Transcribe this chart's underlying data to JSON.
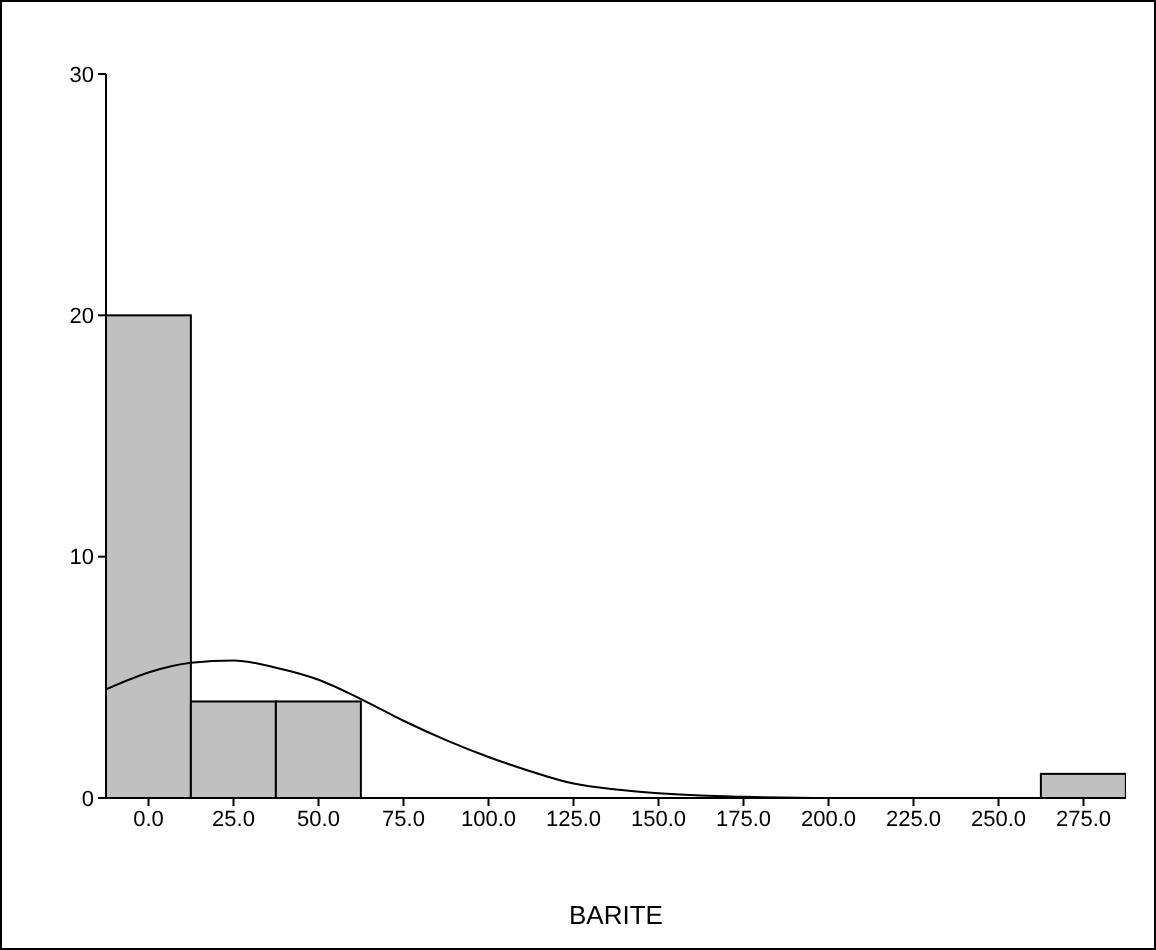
{
  "chart_data": {
    "type": "histogram",
    "xlabel": "BARITE",
    "bins": [
      -12.5,
      12.5,
      37.5,
      62.5,
      87.5,
      112.5,
      137.5,
      162.5,
      187.5,
      212.5,
      237.5,
      262.5,
      287.5
    ],
    "values": [
      20,
      4,
      4,
      0,
      0,
      0,
      0,
      0,
      0,
      0,
      0,
      1
    ],
    "color": "#c0c0c0",
    "series": [
      {
        "type": "line",
        "color": "#000000",
        "x": [
          -12.5,
          0,
          12.5,
          25,
          37.5,
          50,
          62.5,
          75,
          87.5,
          100,
          112.5,
          125,
          137.5,
          150,
          162.5,
          175,
          200,
          250,
          287.5
        ],
        "values": [
          4.5,
          5.2,
          5.6,
          5.7,
          5.4,
          4.9,
          4.1,
          3.2,
          2.4,
          1.7,
          1.1,
          0.6,
          0.35,
          0.2,
          0.1,
          0.05,
          0,
          0,
          0
        ]
      }
    ],
    "xlim": [
      -12.5,
      287.5
    ],
    "xticks": [
      {
        "value": 0,
        "label": "0.0"
      },
      {
        "value": 25,
        "label": "25.0"
      },
      {
        "value": 50,
        "label": "50.0"
      },
      {
        "value": 75,
        "label": "75.0"
      },
      {
        "value": 100,
        "label": "100.0"
      },
      {
        "value": 125,
        "label": "125.0"
      },
      {
        "value": 150,
        "label": "150.0"
      },
      {
        "value": 175,
        "label": "175.0"
      },
      {
        "value": 200,
        "label": "200.0"
      },
      {
        "value": 225,
        "label": "225.0"
      },
      {
        "value": 250,
        "label": "250.0"
      },
      {
        "value": 275,
        "label": "275.0"
      }
    ],
    "ylim": [
      0,
      30
    ],
    "yticks": [
      0,
      10,
      20,
      30
    ]
  }
}
